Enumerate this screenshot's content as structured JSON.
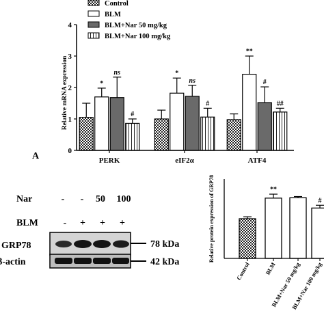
{
  "figure": {
    "panel_label": "A",
    "western": {
      "nar_label": "Nar",
      "blm_label": "BLM",
      "nar_values": [
        "-",
        "-",
        "50",
        "100"
      ],
      "blm_values": [
        "-",
        "+",
        "+",
        "+"
      ],
      "grp78_label": "GRP78",
      "actin_label": "β-actin",
      "grp78_kda": "78 kDa",
      "actin_kda": "42 kDa"
    }
  },
  "colors": {
    "control": "#7f7f7f",
    "blm": "#ffffff",
    "nar50": "#6a6a6a",
    "nar100": "#ffffff",
    "outline": "#000000"
  },
  "chart_data": [
    {
      "type": "bar",
      "ylabel": "Relative mRNA expression",
      "xlabel": "",
      "ylim": [
        0,
        4
      ],
      "yticks": [
        "0",
        "1",
        "2",
        "3",
        "4"
      ],
      "categories": [
        "PERK",
        "eIF2α",
        "ATF4"
      ],
      "legend_placement": "top",
      "series": [
        {
          "name": "Control",
          "pattern": "checker",
          "values": [
            1.05,
            1.0,
            0.98
          ],
          "errors": [
            0.45,
            0.28,
            0.18
          ],
          "labels": [
            "",
            "",
            ""
          ]
        },
        {
          "name": "BLM",
          "pattern": "white",
          "values": [
            1.7,
            1.82,
            2.42
          ],
          "errors": [
            0.28,
            0.48,
            0.58
          ],
          "labels": [
            "*",
            "*",
            "**"
          ]
        },
        {
          "name": "BLM+Nar 50 mg/kg",
          "pattern": "gray",
          "values": [
            1.68,
            1.72,
            1.52
          ],
          "errors": [
            0.65,
            0.35,
            0.5
          ],
          "labels": [
            "ns",
            "ns",
            "#"
          ]
        },
        {
          "name": "BLM+Nar 100 mg/kg",
          "pattern": "vstripes",
          "values": [
            0.86,
            1.06,
            1.22
          ],
          "errors": [
            0.14,
            0.28,
            0.12
          ],
          "labels": [
            "#",
            "#",
            "##"
          ]
        }
      ]
    },
    {
      "type": "bar",
      "ylabel": "Relative protein expression of GRP78",
      "xlabel": "",
      "ylim": [
        0,
        2
      ],
      "categories": [
        "Control",
        "BLM",
        "BLM+Nar 50 mg/kg",
        "BLM+Nar 100 mg/kg"
      ],
      "patterns": [
        "checker",
        "white",
        "white",
        "white"
      ],
      "values": [
        1.0,
        1.52,
        1.53,
        1.27
      ],
      "errors": [
        0.05,
        0.1,
        0.03,
        0.07
      ],
      "labels": [
        "",
        "**",
        "",
        "#"
      ]
    }
  ]
}
